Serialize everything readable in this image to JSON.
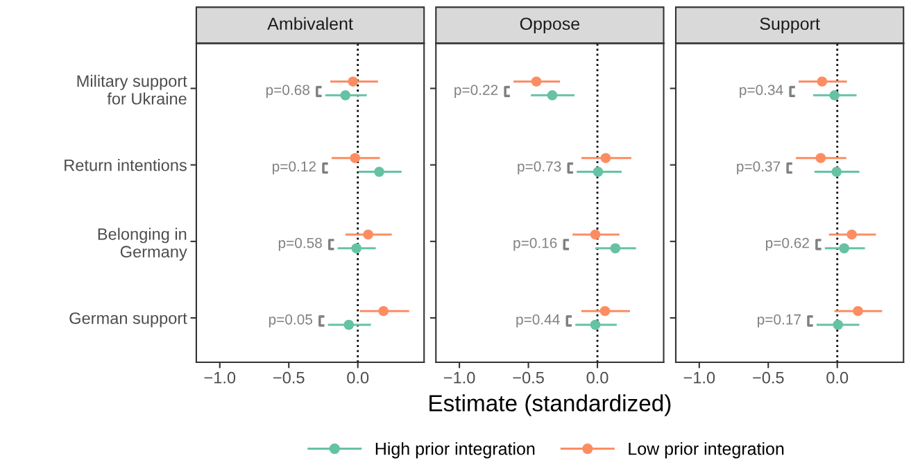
{
  "chart_data": [
    {
      "type": "scatter",
      "orientation": "horizontal",
      "title": "Ambivalent",
      "categories": [
        "Military support\nfor Ukraine",
        "Return intentions",
        "Belonging in\nGermany",
        "German support"
      ],
      "xlim": [
        -1.17,
        0.48
      ],
      "xticks": [
        {
          "value": -1.0,
          "label": "−1.0"
        },
        {
          "value": -0.5,
          "label": "−0.5"
        },
        {
          "value": 0.0,
          "label": "0.0"
        }
      ],
      "grid": false,
      "marker": "circle",
      "legend": "bottom",
      "series": [
        {
          "name": "High prior integration",
          "color": "#66c2a5",
          "values": [
            -0.09,
            0.155,
            -0.01,
            -0.065
          ],
          "errors": [
            [
              -0.236,
              0.065
            ],
            [
              0.005,
              0.317
            ],
            [
              -0.146,
              0.13
            ],
            [
              -0.216,
              0.095
            ]
          ]
        },
        {
          "name": "Low prior integration",
          "color": "#fc8d62",
          "values": [
            -0.035,
            -0.02,
            0.075,
            0.186
          ],
          "errors": [
            [
              -0.2,
              0.146
            ],
            [
              -0.19,
              0.16
            ],
            [
              -0.09,
              0.246
            ],
            [
              0.015,
              0.372
            ]
          ]
        }
      ],
      "ref_lines": [
        {
          "axis": "x",
          "value": 0,
          "line_style": "dotted",
          "color": "#000000"
        }
      ],
      "annotations": [
        "p=0.68",
        "p=0.12",
        "p=0.58",
        "p=0.05"
      ]
    },
    {
      "type": "scatter",
      "orientation": "horizontal",
      "title": "Oppose",
      "xlabel": "Estimate (standardized)",
      "categories": [
        null,
        null,
        null,
        null
      ],
      "xlim": [
        -1.17,
        0.48
      ],
      "xticks": [
        {
          "value": -1.0,
          "label": "−1.0"
        },
        {
          "value": -0.5,
          "label": "−0.5"
        },
        {
          "value": 0.0,
          "label": "0.0"
        }
      ],
      "grid": false,
      "marker": "circle",
      "tick_labels": "x",
      "series": [
        {
          "color": "#66c2a5",
          "values": [
            -0.327,
            0.005,
            0.13,
            -0.015
          ],
          "errors": [
            [
              -0.482,
              -0.166
            ],
            [
              -0.15,
              0.176
            ],
            [
              -0.015,
              0.28
            ],
            [
              -0.16,
              0.14
            ]
          ]
        },
        {
          "color": "#fc8d62",
          "values": [
            -0.442,
            0.06,
            -0.015,
            0.055
          ],
          "errors": [
            [
              -0.608,
              -0.271
            ],
            [
              -0.116,
              0.246
            ],
            [
              -0.18,
              0.16
            ],
            [
              -0.116,
              0.236
            ]
          ]
        }
      ],
      "ref_lines": [
        {
          "axis": "x",
          "value": 0,
          "line_style": "dotted",
          "color": "#000000"
        }
      ],
      "annotations": [
        "p=0.22",
        "p=0.73",
        "p=0.16",
        "p=0.44"
      ]
    },
    {
      "type": "scatter",
      "orientation": "horizontal",
      "title": "Support",
      "categories": [
        null,
        null,
        null,
        null
      ],
      "xlim": [
        -1.17,
        0.48
      ],
      "xticks": [
        {
          "value": -1.0,
          "label": "−1.0"
        },
        {
          "value": -0.5,
          "label": "−0.5"
        },
        {
          "value": 0.0,
          "label": "0.0"
        }
      ],
      "grid": false,
      "marker": "circle",
      "tick_labels": "x",
      "series": [
        {
          "color": "#66c2a5",
          "values": [
            -0.02,
            -0.005,
            0.05,
            0.005
          ],
          "errors": [
            [
              -0.175,
              0.14
            ],
            [
              -0.165,
              0.16
            ],
            [
              -0.09,
              0.2
            ],
            [
              -0.15,
              0.16
            ]
          ]
        },
        {
          "color": "#fc8d62",
          "values": [
            -0.11,
            -0.12,
            0.105,
            0.15
          ],
          "errors": [
            [
              -0.28,
              0.07
            ],
            [
              -0.3,
              0.065
            ],
            [
              -0.06,
              0.28
            ],
            [
              -0.02,
              0.325
            ]
          ]
        }
      ],
      "ref_lines": [
        {
          "axis": "x",
          "value": 0,
          "line_style": "dotted",
          "color": "#000000"
        }
      ],
      "annotations": [
        "p=0.34",
        "p=0.37",
        "p=0.62",
        "p=0.17"
      ]
    }
  ]
}
